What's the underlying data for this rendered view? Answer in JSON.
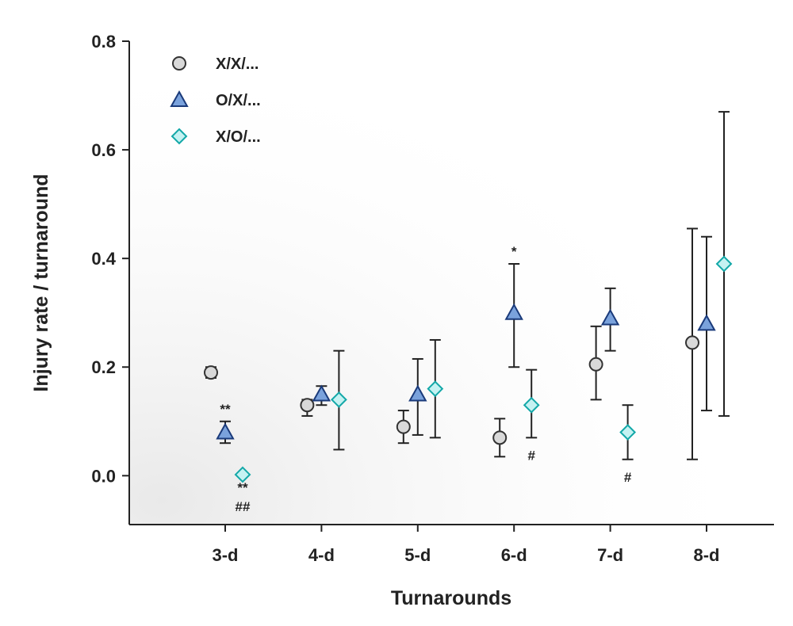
{
  "chart_data": {
    "type": "scatter",
    "xlabel": "Turnarounds",
    "ylabel": "Injury rate / turnaround",
    "categories": [
      "3-d",
      "4-d",
      "5-d",
      "6-d",
      "7-d",
      "8-d"
    ],
    "ylim": [
      -0.09,
      0.8
    ],
    "yticks": [
      "0.0",
      "0.2",
      "0.4",
      "0.6",
      "0.8"
    ],
    "ytick_values": [
      0.0,
      0.2,
      0.4,
      0.6,
      0.8
    ],
    "grid": false,
    "legend_position": "top-left",
    "series": [
      {
        "name": "X/X/...",
        "marker": "circle",
        "color": "#d9d9d9",
        "stroke": "#333333",
        "values": [
          0.19,
          0.13,
          0.09,
          0.07,
          0.205,
          0.245
        ],
        "lower": [
          0.18,
          0.11,
          0.06,
          0.035,
          0.14,
          0.03
        ],
        "upper": [
          0.2,
          0.14,
          0.12,
          0.105,
          0.275,
          0.455
        ]
      },
      {
        "name": "O/X/...",
        "marker": "triangle",
        "color": "#7aa2dc",
        "stroke": "#1a3a7a",
        "values": [
          0.08,
          0.15,
          0.15,
          0.3,
          0.29,
          0.28
        ],
        "lower": [
          0.06,
          0.13,
          0.075,
          0.2,
          0.23,
          0.12
        ],
        "upper": [
          0.1,
          0.165,
          0.215,
          0.39,
          0.345,
          0.44
        ]
      },
      {
        "name": "X/O/...",
        "marker": "diamond",
        "color": "#c5f2f2",
        "stroke": "#13a8a8",
        "values": [
          0.002,
          0.14,
          0.16,
          0.13,
          0.08,
          0.39
        ],
        "lower": [
          null,
          0.048,
          0.07,
          0.07,
          0.03,
          0.11
        ],
        "upper": [
          null,
          0.23,
          0.25,
          0.195,
          0.13,
          0.67
        ]
      }
    ],
    "annotations": [
      {
        "text": "**",
        "category": "3-d",
        "series": "O/X/...",
        "position": "above"
      },
      {
        "text": "**",
        "category": "3-d",
        "series": "X/O/...",
        "position": "below"
      },
      {
        "text": "##",
        "category": "3-d",
        "series": "X/O/...",
        "position": "below-2"
      },
      {
        "text": "*",
        "category": "6-d",
        "series": "O/X/...",
        "position": "above"
      },
      {
        "text": "#",
        "category": "6-d",
        "series": "X/O/...",
        "position": "below"
      },
      {
        "text": "#",
        "category": "7-d",
        "series": "X/O/...",
        "position": "below"
      }
    ]
  }
}
